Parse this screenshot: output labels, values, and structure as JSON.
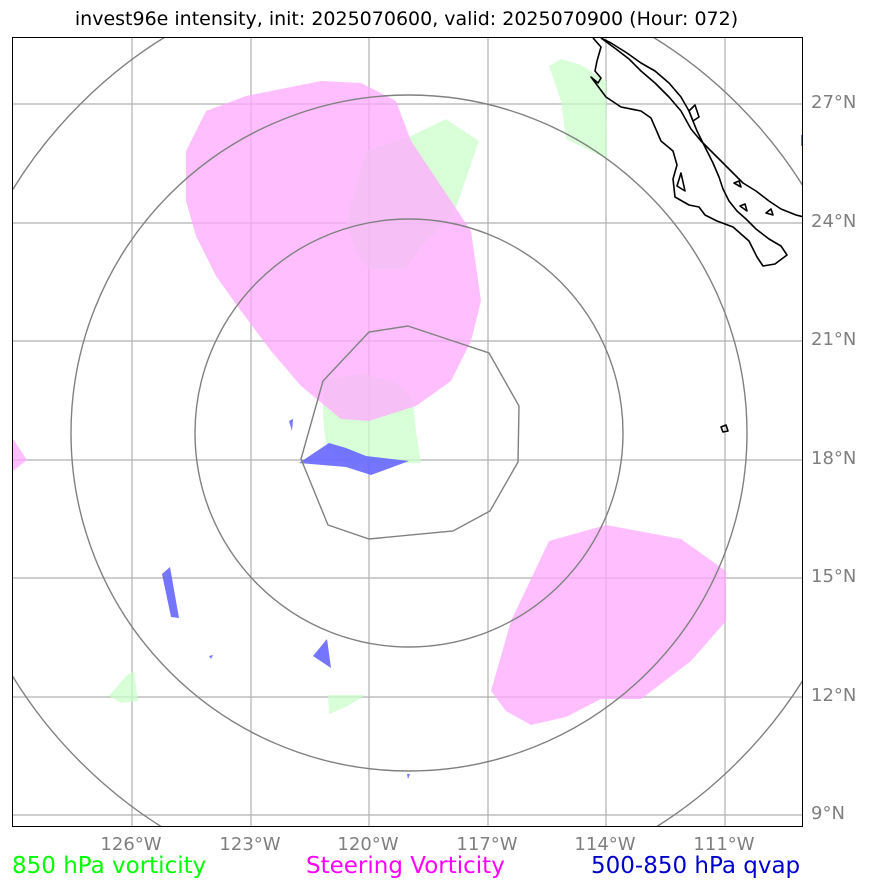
{
  "title": "invest96e intensity, init: 2025070600, valid: 2025070900 (Hour: 072)",
  "lat_labels": [
    "27°N",
    "24°N",
    "21°N",
    "18°N",
    "15°N",
    "12°N",
    "9°N"
  ],
  "lon_labels": [
    "126°W",
    "123°W",
    "120°W",
    "117°W",
    "114°W",
    "111°W"
  ],
  "legend": [
    {
      "label": "850 hPa vorticity",
      "color": "#00ff00"
    },
    {
      "label": "Steering Vorticity",
      "color": "#ff00ff"
    },
    {
      "label": "500-850 hPa qvap",
      "color": "#0000cc"
    }
  ],
  "colors": {
    "gridline": "#b0b0b0",
    "range_ring": "#808080",
    "coastline": "#000000",
    "vorticity_850_fill": "#ccffcc",
    "steering_vorticity_fill": "#ffaaff",
    "qvap_fill": "#6666ff"
  }
}
